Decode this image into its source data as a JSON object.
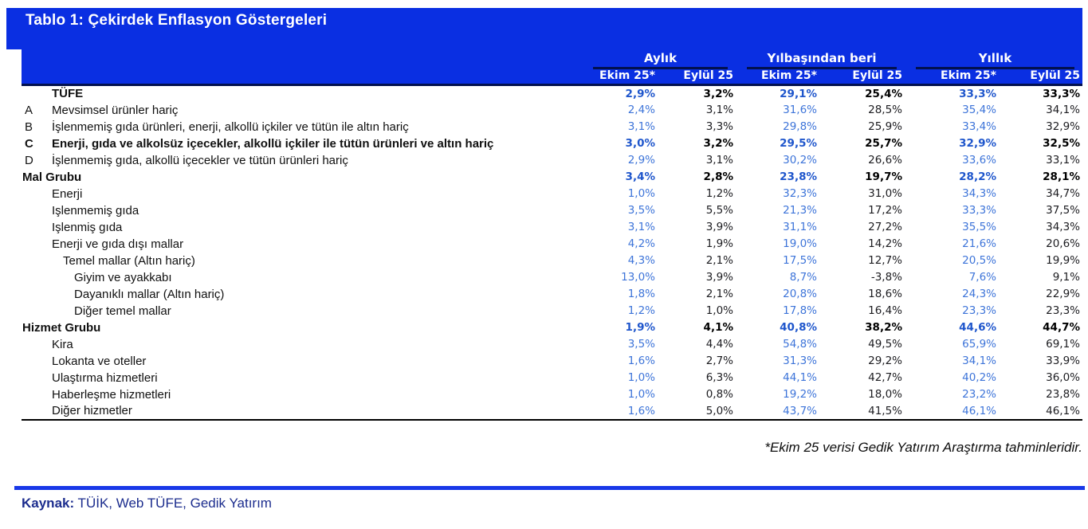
{
  "title": "Tablo 1: Çekirdek Enflasyon Göstergeleri",
  "header": {
    "groups": [
      {
        "label": "Aylık"
      },
      {
        "label": "Yılbaşından beri"
      },
      {
        "label": "Yıllık"
      }
    ],
    "subcolumns": [
      "Ekim 25*",
      "Eylül 25",
      "Ekim 25*",
      "Eylül 25",
      "Ekim 25*",
      "Eylül 25"
    ]
  },
  "rows": [
    {
      "code": "",
      "label": "TÜFE",
      "bold": true,
      "indent": 1,
      "values": [
        "2,9%",
        "3,2%",
        "29,1%",
        "25,4%",
        "33,3%",
        "33,3%"
      ]
    },
    {
      "code": "A",
      "label": "Mevsimsel ürünler hariç",
      "indent": 1,
      "values": [
        "2,4%",
        "3,1%",
        "31,6%",
        "28,5%",
        "35,4%",
        "34,1%"
      ]
    },
    {
      "code": "B",
      "label": "İşlenmemiş gıda ürünleri, enerji, alkollü içkiler ve tütün ile altın hariç",
      "indent": 1,
      "values": [
        "3,1%",
        "3,3%",
        "29,8%",
        "25,9%",
        "33,4%",
        "32,9%"
      ]
    },
    {
      "code": "C",
      "label": "Enerji, gıda ve alkolsüz içecekler, alkollü içkiler ile tütün ürünleri ve altın hariç",
      "bold": true,
      "indent": 1,
      "values": [
        "3,0%",
        "3,2%",
        "29,5%",
        "25,7%",
        "32,9%",
        "32,5%"
      ]
    },
    {
      "code": "D",
      "label": "İşlenmemiş gıda, alkollü içecekler ve tütün ürünleri hariç",
      "indent": 1,
      "values": [
        "2,9%",
        "3,1%",
        "30,2%",
        "26,6%",
        "33,6%",
        "33,1%"
      ]
    },
    {
      "label": "Mal Grubu",
      "bold": true,
      "indent": 0,
      "values": [
        "3,4%",
        "2,8%",
        "23,8%",
        "19,7%",
        "28,2%",
        "28,1%"
      ]
    },
    {
      "label": "Enerji",
      "indent": 1,
      "values": [
        "1,0%",
        "1,2%",
        "32,3%",
        "31,0%",
        "34,3%",
        "34,7%"
      ]
    },
    {
      "label": "Işlenmemiş gıda",
      "indent": 1,
      "values": [
        "3,5%",
        "5,5%",
        "21,3%",
        "17,2%",
        "33,3%",
        "37,5%"
      ]
    },
    {
      "label": "Işlenmiş gıda",
      "indent": 1,
      "values": [
        "3,1%",
        "3,9%",
        "31,1%",
        "27,2%",
        "35,5%",
        "34,3%"
      ]
    },
    {
      "label": "Enerji ve gıda dışı mallar",
      "indent": 1,
      "values": [
        "4,2%",
        "1,9%",
        "19,0%",
        "14,2%",
        "21,6%",
        "20,6%"
      ]
    },
    {
      "label": "Temel mallar (Altın hariç)",
      "indent": 2,
      "values": [
        "4,3%",
        "2,1%",
        "17,5%",
        "12,7%",
        "20,5%",
        "19,9%"
      ]
    },
    {
      "label": "Giyim ve ayakkabı",
      "indent": 3,
      "values": [
        "13,0%",
        "3,9%",
        "8,7%",
        "-3,8%",
        "7,6%",
        "9,1%"
      ]
    },
    {
      "label": "Dayanıklı mallar (Altın hariç)",
      "indent": 3,
      "values": [
        "1,8%",
        "2,1%",
        "20,8%",
        "18,6%",
        "24,3%",
        "22,9%"
      ]
    },
    {
      "label": "Diğer temel mallar",
      "indent": 3,
      "values": [
        "1,2%",
        "1,0%",
        "17,8%",
        "16,4%",
        "23,3%",
        "23,3%"
      ]
    },
    {
      "label": "Hizmet Grubu",
      "bold": true,
      "indent": 0,
      "values": [
        "1,9%",
        "4,1%",
        "40,8%",
        "38,2%",
        "44,6%",
        "44,7%"
      ]
    },
    {
      "label": "Kira",
      "indent": 1,
      "values": [
        "3,5%",
        "4,4%",
        "54,8%",
        "49,5%",
        "65,9%",
        "69,1%"
      ]
    },
    {
      "label": "Lokanta ve oteller",
      "indent": 1,
      "values": [
        "1,6%",
        "2,7%",
        "31,3%",
        "29,2%",
        "34,1%",
        "33,9%"
      ]
    },
    {
      "label": "Ulaştırma hizmetleri",
      "indent": 1,
      "values": [
        "1,0%",
        "6,3%",
        "44,1%",
        "42,7%",
        "40,2%",
        "36,0%"
      ]
    },
    {
      "label": "Haberleşme hizmetleri",
      "indent": 1,
      "values": [
        "1,0%",
        "0,8%",
        "19,2%",
        "18,0%",
        "23,2%",
        "23,8%"
      ]
    },
    {
      "label": "Diğer hizmetler",
      "indent": 1,
      "values": [
        "1,6%",
        "5,0%",
        "43,7%",
        "41,5%",
        "46,1%",
        "46,1%"
      ]
    }
  ],
  "footnote": "*Ekim 25 verisi Gedik Yatırım Araştırma tahminleridir.",
  "source": {
    "label": "Kaynak:",
    "text": " TÜİK, Web TÜFE, Gedik Yatırım"
  },
  "colors": {
    "band_blue": "#0A2FE2",
    "divider_blue": "#1838E8",
    "underline_navy": "#02114F",
    "value_blue": "#3D74D9",
    "value_blue_bold": "#1F56CC",
    "source_navy": "#1C2D8E"
  }
}
